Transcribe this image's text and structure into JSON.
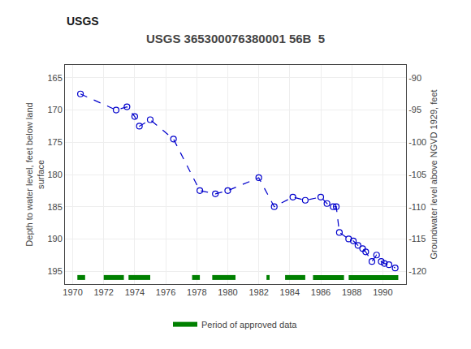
{
  "chart_data": {
    "type": "line",
    "title": "USGS 365300076380001 56B  5",
    "ylabel": "Depth to water level, feet below land\nsurface",
    "y2label": "Groundwater level above NGVD 1929, feet",
    "annotations": [
      "USGS"
    ],
    "series": [
      {
        "type": "line",
        "color": "#0000cc",
        "line_style": "dashed",
        "marker": "circle-open",
        "x": [
          1970.5,
          1972.8,
          1973.5,
          1974.0,
          1974.3,
          1975.0,
          1976.5,
          1978.2,
          1979.2,
          1980.0,
          1982.0,
          1983.0,
          1984.2,
          1985.0,
          1986.0,
          1986.4,
          1986.8,
          1987.0,
          1987.2,
          1987.8,
          1988.1,
          1988.4,
          1988.7,
          1988.9,
          1989.3,
          1989.6,
          1989.9,
          1990.1,
          1990.4,
          1990.8
        ],
        "values": [
          167.5,
          170.0,
          169.5,
          171.0,
          172.5,
          171.5,
          174.5,
          182.5,
          183.0,
          182.5,
          180.5,
          185.0,
          183.5,
          184.0,
          183.5,
          184.5,
          185.0,
          185.0,
          189.0,
          190.0,
          190.3,
          191.0,
          191.5,
          192.0,
          193.5,
          192.5,
          193.5,
          193.8,
          194.0,
          194.5
        ]
      },
      {
        "type": "segments",
        "name": "Period of approved data",
        "color": "#008000",
        "segments": [
          [
            1970.3,
            1970.8
          ],
          [
            1972.0,
            1973.3
          ],
          [
            1973.6,
            1975.0
          ],
          [
            1977.7,
            1978.2
          ],
          [
            1979.0,
            1980.5
          ],
          [
            1982.5,
            1982.7
          ],
          [
            1983.7,
            1985.0
          ],
          [
            1985.5,
            1987.5
          ],
          [
            1987.8,
            1991.0
          ]
        ]
      }
    ],
    "xlim": [
      1969.5,
      1991.5
    ],
    "xticks": [
      1970,
      1972,
      1974,
      1976,
      1978,
      1980,
      1982,
      1984,
      1986,
      1988,
      1990
    ],
    "ylim": [
      197,
      163
    ],
    "yticks": [
      165,
      170,
      175,
      180,
      185,
      190,
      195
    ],
    "y2lim": [
      -122,
      -88
    ],
    "y2ticks": [
      -90,
      -95,
      -100,
      -105,
      -110,
      -115,
      -120
    ],
    "grid": true,
    "legend": "bottom"
  }
}
